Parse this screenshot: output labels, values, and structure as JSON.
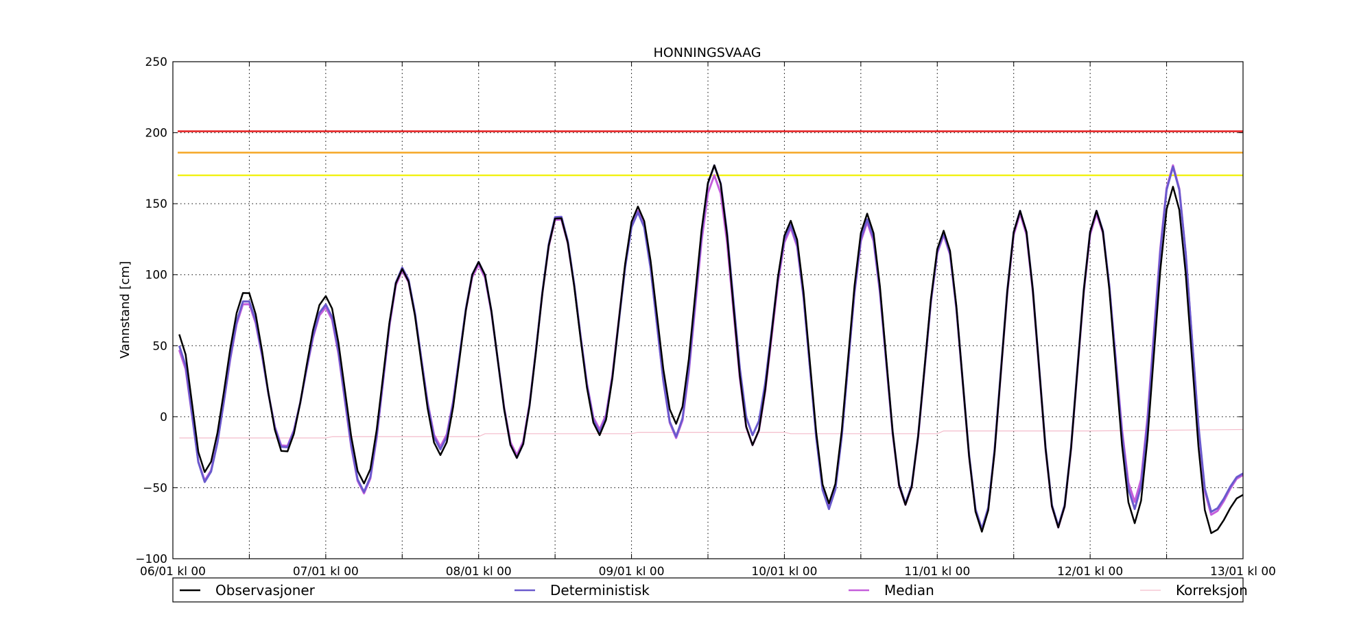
{
  "chart_data": {
    "type": "line",
    "title": "HONNINGSVAAG",
    "xlabel": "",
    "ylabel": "Vannstand [cm]",
    "ylim": [
      -100,
      250
    ],
    "yticks": [
      -100,
      -50,
      0,
      50,
      100,
      150,
      200,
      250
    ],
    "xlim": [
      0,
      168
    ],
    "x_unit": "hours since 06/01 kl 00",
    "xtick_labels": [
      "06/01 kl 00",
      "07/01 kl 00",
      "08/01 kl 00",
      "09/01 kl 00",
      "10/01 kl 00",
      "11/01 kl 00",
      "12/01 kl 00",
      "13/01 kl 00"
    ],
    "grid": true,
    "legend_location": "below",
    "thresholds": [
      {
        "value": 201,
        "color": "#e31a1c"
      },
      {
        "value": 186,
        "color": "#f5a623"
      },
      {
        "value": 170,
        "color": "#f2f21a"
      }
    ],
    "series": [
      {
        "name": "Observasjoner",
        "color": "#000000",
        "turning_points": [
          [
            1,
            58
          ],
          [
            5,
            -39
          ],
          [
            11.5,
            89
          ],
          [
            17.5,
            -26
          ],
          [
            24,
            85
          ],
          [
            30,
            -47
          ],
          [
            36,
            104
          ],
          [
            42,
            -27
          ],
          [
            48,
            109
          ],
          [
            54,
            -29
          ],
          [
            60.5,
            142
          ],
          [
            67,
            -13
          ],
          [
            73,
            148
          ],
          [
            79,
            -5
          ],
          [
            85,
            177
          ],
          [
            91,
            -20
          ],
          [
            97,
            138
          ],
          [
            103,
            -61
          ],
          [
            109,
            143
          ],
          [
            115,
            -62
          ],
          [
            121,
            131
          ],
          [
            127,
            -81
          ],
          [
            133,
            145
          ],
          [
            139,
            -78
          ],
          [
            145,
            145
          ],
          [
            151,
            -75
          ],
          [
            157,
            162
          ],
          [
            163,
            -82
          ],
          [
            168,
            -55
          ]
        ]
      },
      {
        "name": "Deterministisk",
        "color": "#6a5acd",
        "turning_points": [
          [
            1,
            50
          ],
          [
            5,
            -46
          ],
          [
            11.5,
            83
          ],
          [
            17.5,
            -23
          ],
          [
            24,
            79
          ],
          [
            30,
            -53
          ],
          [
            36,
            105
          ],
          [
            42,
            -23
          ],
          [
            48,
            109
          ],
          [
            54,
            -29
          ],
          [
            60.5,
            143
          ],
          [
            67,
            -11
          ],
          [
            73,
            144
          ],
          [
            79,
            -14
          ],
          [
            85,
            177
          ],
          [
            91,
            -13
          ],
          [
            97,
            135
          ],
          [
            103,
            -65
          ],
          [
            109,
            139
          ],
          [
            115,
            -61
          ],
          [
            121,
            129
          ],
          [
            127,
            -79
          ],
          [
            133,
            145
          ],
          [
            139,
            -77
          ],
          [
            145,
            145
          ],
          [
            151,
            -65
          ],
          [
            157,
            176
          ],
          [
            163,
            -67
          ],
          [
            168,
            -40
          ]
        ]
      },
      {
        "name": "Median",
        "color": "#c45edb",
        "turning_points": [
          [
            1,
            47
          ],
          [
            5,
            -45
          ],
          [
            11.5,
            81
          ],
          [
            17.5,
            -22
          ],
          [
            24,
            77
          ],
          [
            30,
            -54
          ],
          [
            36,
            103
          ],
          [
            42,
            -21
          ],
          [
            48,
            107
          ],
          [
            54,
            -27
          ],
          [
            60.5,
            141
          ],
          [
            67,
            -9
          ],
          [
            73,
            145
          ],
          [
            79,
            -15
          ],
          [
            85,
            170
          ],
          [
            91,
            -20
          ],
          [
            97,
            133
          ],
          [
            103,
            -63
          ],
          [
            109,
            137
          ],
          [
            115,
            -62
          ],
          [
            121,
            128
          ],
          [
            127,
            -80
          ],
          [
            133,
            143
          ],
          [
            139,
            -78
          ],
          [
            145,
            143
          ],
          [
            151,
            -60
          ],
          [
            157,
            177
          ],
          [
            163,
            -69
          ],
          [
            168,
            -41
          ]
        ]
      },
      {
        "name": "Korreksjon",
        "color": "#f4bccb",
        "points": [
          [
            1,
            -15
          ],
          [
            24,
            -15
          ],
          [
            25,
            -14
          ],
          [
            48,
            -14
          ],
          [
            49,
            -12
          ],
          [
            72,
            -12
          ],
          [
            73,
            -11
          ],
          [
            96,
            -11
          ],
          [
            97,
            -12
          ],
          [
            120,
            -12
          ],
          [
            121,
            -10
          ],
          [
            144,
            -10
          ],
          [
            168,
            -9
          ]
        ]
      }
    ]
  }
}
